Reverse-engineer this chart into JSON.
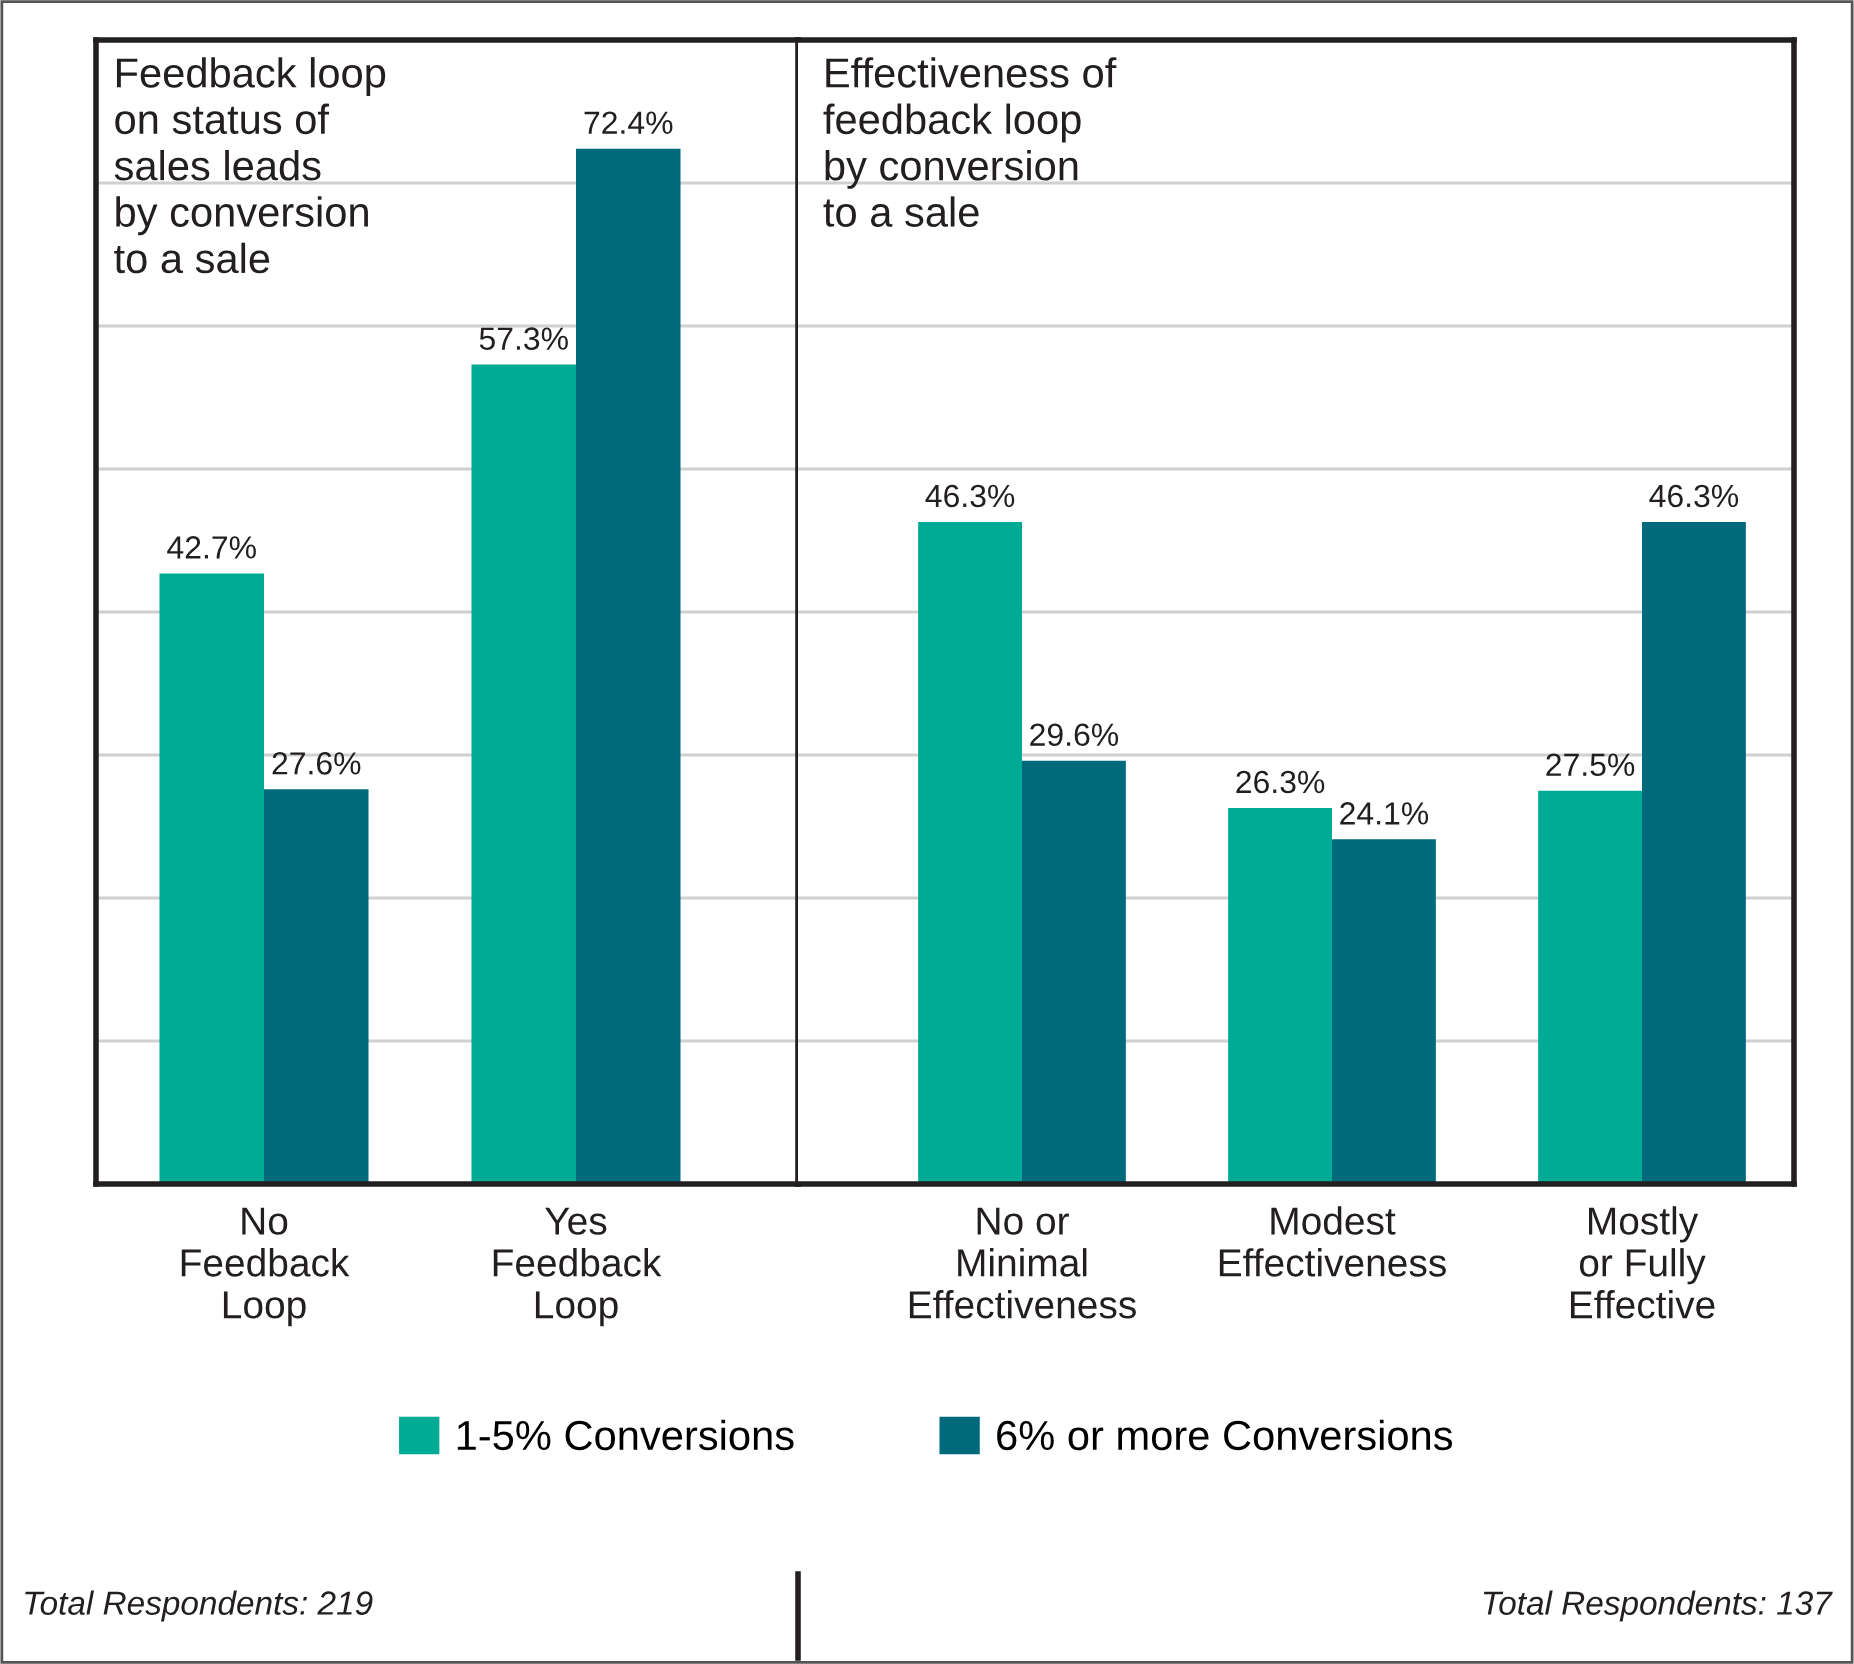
{
  "chart_data": [
    {
      "type": "bar",
      "title": "Feedback loop\non status of\nsales leads\nby conversion\nto a sale",
      "categories": [
        "No\nFeedback\nLoop",
        "Yes\nFeedback\nLoop"
      ],
      "series": [
        {
          "name": "1-5% Conversions",
          "color": "#00ab95",
          "values": [
            42.7,
            57.3
          ],
          "value_labels": [
            "42.7%",
            "57.3%"
          ]
        },
        {
          "name": "6% or more Conversions",
          "color": "#006a7d",
          "values": [
            27.6,
            72.4
          ],
          "value_labels": [
            "27.6%",
            "72.4%"
          ]
        }
      ],
      "ylim": [
        0,
        80
      ],
      "yticks": [
        {
          "value": 10,
          "label": null
        },
        {
          "value": 20,
          "label": null
        },
        {
          "value": 30,
          "label": null
        },
        {
          "value": 40,
          "label": null
        },
        {
          "value": 50,
          "label": null
        },
        {
          "value": 60,
          "label": null
        },
        {
          "value": 70,
          "label": null
        }
      ],
      "grid": "y",
      "tick_labels": "x",
      "legend": "bottom",
      "annotations": [
        "Total Respondents: 219"
      ]
    },
    {
      "type": "bar",
      "title": "Effectiveness of\nfeedback loop\nby conversion\nto a sale",
      "categories": [
        "No or\nMinimal\nEffectiveness",
        "Modest\nEffectiveness",
        "Mostly\nor Fully\nEffective"
      ],
      "series": [
        {
          "name": "1-5% Conversions",
          "color": "#00ab95",
          "values": [
            46.3,
            26.3,
            27.5
          ],
          "value_labels": [
            "46.3%",
            "26.3%",
            "27.5%"
          ]
        },
        {
          "name": "6% or more Conversions",
          "color": "#006a7d",
          "values": [
            29.6,
            24.1,
            46.3
          ],
          "value_labels": [
            "29.6%",
            "24.1%",
            "46.3%"
          ]
        }
      ],
      "ylim": [
        0,
        80
      ],
      "yticks": [
        {
          "value": 10,
          "label": null
        },
        {
          "value": 20,
          "label": null
        },
        {
          "value": 30,
          "label": null
        },
        {
          "value": 40,
          "label": null
        },
        {
          "value": 50,
          "label": null
        },
        {
          "value": 60,
          "label": null
        },
        {
          "value": 70,
          "label": null
        }
      ],
      "grid": "y",
      "tick_labels": "x",
      "legend": "bottom",
      "annotations": [
        "Total Respondents: 137"
      ]
    }
  ]
}
